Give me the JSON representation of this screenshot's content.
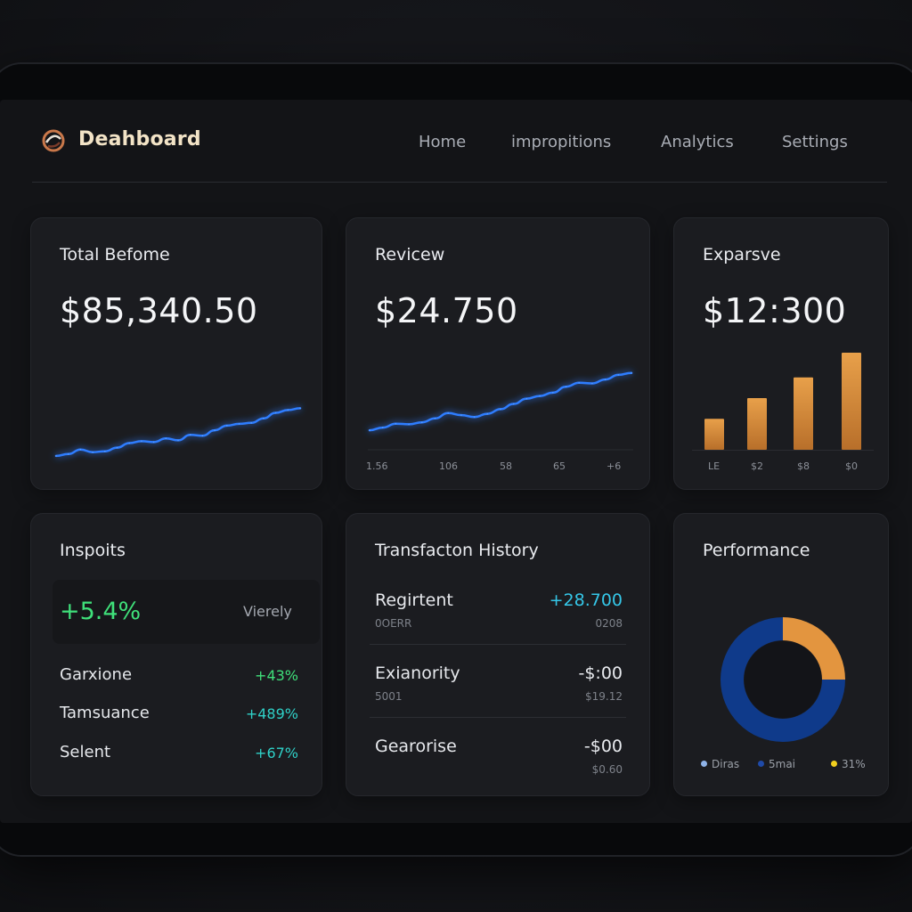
{
  "app": {
    "title": "Deahboard",
    "nav": [
      "Home",
      "impropitions",
      "Analytics",
      "Settings"
    ]
  },
  "colors": {
    "accent_blue": "#3a8dff",
    "accent_orange": "#e3953f",
    "positive_green": "#3fe07a",
    "positive_cyan": "#2fd1c8",
    "donut_blue": "#0f3a8a"
  },
  "cards": {
    "total": {
      "title": "Total Befome",
      "value": "$85,340.50"
    },
    "review": {
      "title": "Revicew",
      "value": "$24.750",
      "x_ticks": [
        "1.56",
        "106",
        "58",
        "65",
        "+6"
      ]
    },
    "expense": {
      "title": "Exparsve",
      "value": "$12:300",
      "x_ticks": [
        "LE",
        "$2",
        "$8",
        "$0"
      ]
    },
    "insights": {
      "title": "Inspoits",
      "highlight_value": "+5.4%",
      "highlight_tag": "Vierely",
      "items": [
        {
          "label": "Garxione",
          "value": "+43%"
        },
        {
          "label": "Tamsuance",
          "value": "+489%"
        },
        {
          "label": "Selent",
          "value": "+67%"
        }
      ]
    },
    "transactions": {
      "title": "Transfacton History",
      "rows": [
        {
          "name": "Regirtent",
          "sub": "0OERR",
          "amount": "+28.700",
          "sub_right": "0208"
        },
        {
          "name": "Exianority",
          "sub": "5001",
          "amount": "-$:00",
          "sub_right": "$19.12"
        },
        {
          "name": "Gearorise",
          "sub": "",
          "amount": "-$00",
          "sub_right": "$0.60"
        }
      ]
    },
    "performance": {
      "title": "Performance",
      "legend": [
        {
          "label": "Diras",
          "color": "#8fb3e8"
        },
        {
          "label": "5mai",
          "color": "#1f4aa8"
        },
        {
          "label": "31%",
          "color": "#f2cf1e"
        }
      ]
    }
  },
  "chart_data": [
    {
      "type": "line",
      "title": "Total Befome",
      "x": [
        0,
        1,
        2,
        3,
        4,
        5,
        6,
        7,
        8,
        9,
        10,
        11,
        12,
        13,
        14,
        15,
        16,
        17,
        18,
        19,
        20
      ],
      "y": [
        5,
        7,
        12,
        9,
        10,
        14,
        19,
        21,
        20,
        24,
        22,
        28,
        27,
        33,
        38,
        40,
        41,
        46,
        52,
        55,
        57
      ],
      "ylim": [
        0,
        70
      ]
    },
    {
      "type": "line",
      "title": "Revicew",
      "categories": [
        "1.56",
        "106",
        "58",
        "65",
        "+6"
      ],
      "x": [
        0,
        1,
        2,
        3,
        4,
        5,
        6,
        7,
        8,
        9,
        10,
        11,
        12,
        13,
        14,
        15,
        16,
        17,
        18,
        19,
        20
      ],
      "y": [
        8,
        12,
        18,
        17,
        20,
        26,
        34,
        31,
        28,
        33,
        40,
        48,
        56,
        60,
        65,
        74,
        80,
        79,
        85,
        92,
        95
      ],
      "ylim": [
        0,
        100
      ]
    },
    {
      "type": "bar",
      "title": "Exparsve",
      "categories": [
        "LE",
        "$2",
        "$8",
        "$0"
      ],
      "values": [
        30,
        50,
        70,
        94
      ],
      "ylim": [
        0,
        100
      ]
    },
    {
      "type": "pie",
      "title": "Performance",
      "series": [
        {
          "name": "Diras",
          "values": [
            75
          ]
        },
        {
          "name": "31%",
          "values": [
            25
          ]
        }
      ]
    }
  ]
}
